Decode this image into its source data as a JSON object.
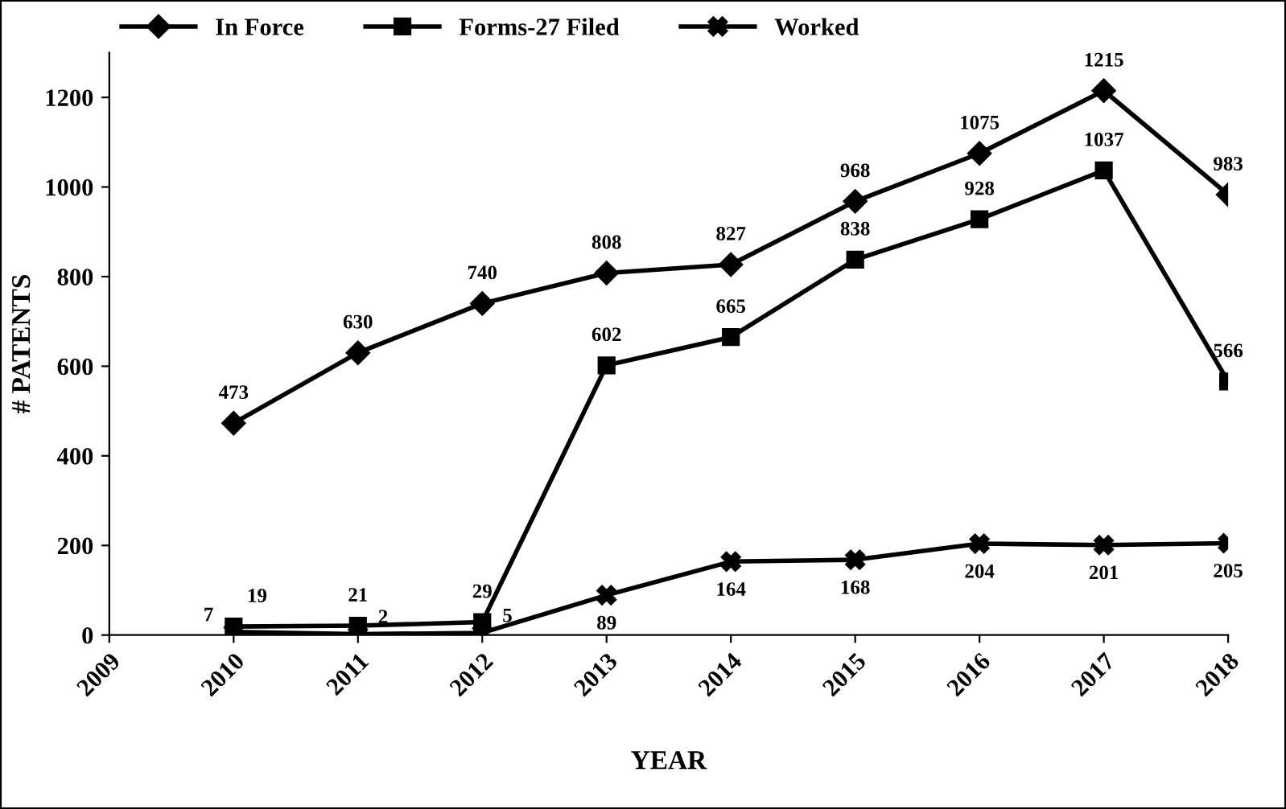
{
  "chart_data": {
    "type": "line",
    "xlabel": "YEAR",
    "ylabel": "# PATENTS",
    "x": [
      2010,
      2011,
      2012,
      2013,
      2014,
      2015,
      2016,
      2017,
      2018
    ],
    "series": [
      {
        "name": "In Force",
        "color": "#000000",
        "marker": "diamond",
        "values": [
          473,
          630,
          740,
          808,
          827,
          968,
          1075,
          1215,
          983
        ]
      },
      {
        "name": "Forms-27 Filed",
        "color": "#000000",
        "marker": "square",
        "values": [
          19,
          21,
          29,
          602,
          665,
          838,
          928,
          1037,
          566
        ]
      },
      {
        "name": "Worked",
        "color": "#000000",
        "marker": "cross",
        "values": [
          7,
          2,
          5,
          89,
          164,
          168,
          204,
          201,
          205
        ]
      }
    ],
    "xlim": [
      2009,
      2018
    ],
    "xticks": [
      2009,
      2010,
      2011,
      2012,
      2013,
      2014,
      2015,
      2016,
      2017,
      2018
    ],
    "ylim": [
      0,
      1300
    ],
    "yticks": [
      0,
      200,
      400,
      600,
      800,
      1000,
      1200
    ],
    "grid": false,
    "legend": "top",
    "data_labels": true,
    "line_style": "solid"
  }
}
